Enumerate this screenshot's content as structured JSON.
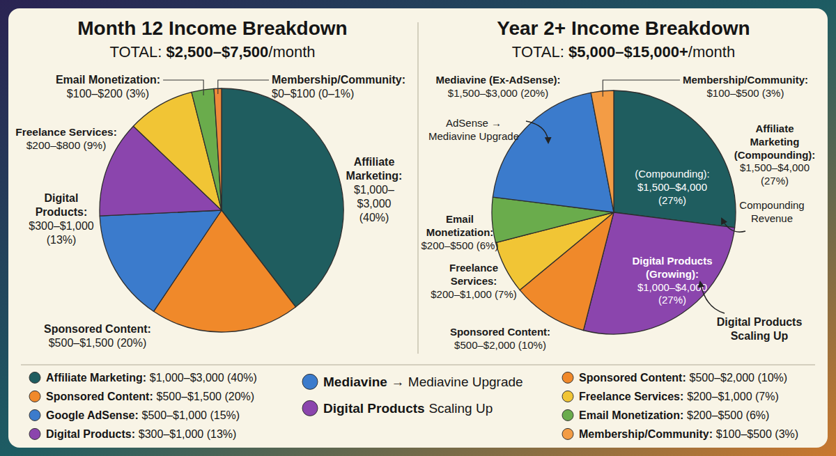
{
  "chart_data": [
    {
      "type": "pie",
      "title": "Month 12 Income Breakdown",
      "subtitle": "TOTAL: $2,500–$7,500/month",
      "categories": [
        "Affiliate Marketing:",
        "Sponsored Content:",
        null,
        "Digital Products:",
        "Freelance Services:",
        "Email Monetization:",
        "Membership/Community:"
      ],
      "values": [
        40,
        20,
        15,
        13,
        9,
        3,
        1
      ],
      "colors": [
        "#1f5d5f",
        "#f0892a",
        "#3b7bcc",
        "#8b45ad",
        "#f1c535",
        "#6aac4c",
        "#ee8a3a"
      ],
      "callout_texts": [
        "$1,000–$3,000 (40%)",
        "$500–$1,500 (20%)",
        null,
        "$300–$1,000 (13%)",
        "$200–$800 (9%)",
        "$100–$200 (3%)",
        "$0–$100 (0–1%)"
      ]
    },
    {
      "type": "pie",
      "title": "Year 2+ Income Breakdown",
      "subtitle": "TOTAL: $5,000–$15,000+/month",
      "categories": [
        "Affiliate Marketing (Compounding):",
        null,
        "Sponsored Content:",
        "Freelance Services:",
        "Email Monetization:",
        "Mediavine (Ex-AdSense):",
        "Membership/Community:"
      ],
      "values": [
        27,
        27,
        10,
        7,
        6,
        20,
        3
      ],
      "colors": [
        "#1f5d5f",
        "#8b45ad",
        "#f0892a",
        "#f1c535",
        "#6aac4c",
        "#3b7bcc",
        "#f39c45"
      ],
      "callout_texts": [
        "$1,500–$4,000 (27%)",
        null,
        "$500–$2,000 (10%)",
        "$200–$1,000 (7%)",
        "$200–$500 (6%)",
        "$1,500–$3,000 (20%)",
        "$100–$500 (3%)"
      ],
      "inner_labels": [
        {
          "title": "(Compounding):",
          "text": "$1,500–$4,000 (27%)"
        },
        {
          "title": "Digital Products (Growing):",
          "text": "$1,000–$4,000 (27%)"
        },
        null,
        null,
        null,
        null,
        null
      ],
      "annotations": [
        "Compounding Revenue",
        "Digital Products Scaling Up",
        null,
        null,
        null,
        "AdSense → Mediavine Upgrade",
        null
      ]
    }
  ],
  "legend_panel": {
    "columns": [
      [
        {
          "name": "Affiliate Marketing:",
          "text": "$1,000–$3,000 (40%)",
          "color": "#1f5d5f"
        },
        {
          "name": "Sponsored Content:",
          "text": "$500–$1,500 (20%)",
          "color": "#f0892a"
        },
        {
          "name": "Google AdSense:",
          "text": "$500–$1,000 (15%)",
          "color": "#3b7bcc"
        },
        {
          "name": "Digital Products:",
          "text": "$300–$1,000 (13%)",
          "color": "#8b45ad"
        }
      ],
      [
        {
          "name": "Mediavine",
          "text": "→ Mediavine Upgrade",
          "color": "#3b7bcc"
        },
        {
          "name": "Digital Products",
          "text": "Scaling Up",
          "color": "#8b45ad"
        }
      ],
      [
        {
          "name": "Sponsored Content:",
          "text": "$500–$2,000 (10%)",
          "color": "#f0892a"
        },
        {
          "name": "Freelance Services:",
          "text": "$200–$1,000 (7%)",
          "color": "#f1c535"
        },
        {
          "name": "Email Monetization:",
          "text": "$200–$500 (6%)",
          "color": "#6aac4c"
        },
        {
          "name": "Membership/Community:",
          "text": "$100–$500 (3%)",
          "color": "#f39c45"
        }
      ]
    ]
  }
}
